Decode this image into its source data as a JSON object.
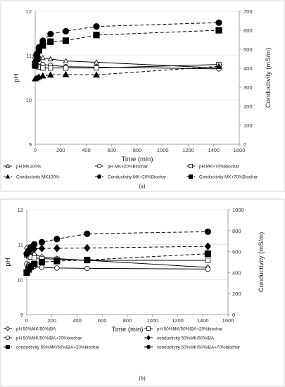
{
  "chart_data": [
    {
      "type": "line",
      "caption": "(a)",
      "xlabel": "Time (min)",
      "ylabel": "pH",
      "y2label": "Conductivity (mS/m)",
      "xlim": [
        0,
        1600
      ],
      "ylim": [
        9,
        12
      ],
      "y2lim": [
        0,
        700
      ],
      "xticks": [
        "0",
        "200",
        "400",
        "600",
        "800",
        "1000",
        "1200",
        "1400",
        "1600"
      ],
      "yticks": [
        "9",
        "10",
        "11",
        "12"
      ],
      "y2ticks": [
        "0",
        "100",
        "200",
        "300",
        "400",
        "500",
        "600",
        "700"
      ],
      "grid": true,
      "legend_position": "bottom",
      "series": [
        {
          "name": "pH MK100%",
          "axis": "left",
          "marker": "triangle-open",
          "line": "solid",
          "x": [
            0,
            15,
            30,
            60,
            120,
            240,
            480,
            1440
          ],
          "y": [
            11.05,
            11.0,
            10.98,
            10.95,
            10.92,
            10.88,
            10.85,
            10.72
          ]
        },
        {
          "name": "pH MK+20%Biochar",
          "axis": "left",
          "marker": "circle-open",
          "line": "solid",
          "x": [
            0,
            15,
            30,
            60,
            120,
            240,
            480,
            1440
          ],
          "y": [
            10.95,
            10.9,
            10.85,
            10.8,
            10.78,
            10.75,
            10.74,
            10.7
          ]
        },
        {
          "name": "pH MK+70%Biochar",
          "axis": "left",
          "marker": "square-open",
          "line": "solid",
          "x": [
            0,
            15,
            30,
            60,
            120,
            240,
            480,
            1440
          ],
          "y": [
            10.8,
            10.76,
            10.74,
            10.72,
            10.72,
            10.72,
            10.72,
            10.8
          ]
        },
        {
          "name": "Conductivity MK100%",
          "axis": "right",
          "marker": "triangle-filled",
          "line": "dashed",
          "x": [
            0,
            15,
            30,
            60,
            120,
            240,
            480,
            1440
          ],
          "y": [
            345,
            350,
            355,
            360,
            365,
            367,
            365,
            410
          ]
        },
        {
          "name": "Conductivity MK+20%Biochar",
          "axis": "right",
          "marker": "circle-filled",
          "line": "dashed",
          "x": [
            0,
            15,
            30,
            60,
            120,
            240,
            480,
            1440
          ],
          "y": [
            430,
            475,
            510,
            545,
            580,
            595,
            620,
            640
          ]
        },
        {
          "name": "Conductivity MK+70%Biochar",
          "axis": "right",
          "marker": "square-filled",
          "line": "dashed",
          "x": [
            0,
            15,
            30,
            60,
            120,
            240,
            480,
            1440
          ],
          "y": [
            415,
            450,
            495,
            520,
            540,
            545,
            575,
            600
          ]
        }
      ]
    },
    {
      "type": "line",
      "caption": "(b)",
      "xlabel": "Time (min)",
      "ylabel": "pH",
      "y2label": "Conductivity (mS/m)",
      "xlim": [
        0,
        1600
      ],
      "ylim": [
        9,
        12
      ],
      "y2lim": [
        0,
        1000
      ],
      "xticks": [
        "0",
        "200",
        "400",
        "600",
        "800",
        "1000",
        "1200",
        "1400",
        "1600"
      ],
      "yticks": [
        "9",
        "10",
        "11",
        "12"
      ],
      "y2ticks": [
        "0",
        "200",
        "400",
        "600",
        "800",
        "1000"
      ],
      "grid": true,
      "legend_position": "bottom",
      "series": [
        {
          "name": "pH 50%MK/50%IBA",
          "axis": "left",
          "marker": "diamond-open",
          "line": "solid",
          "x": [
            0,
            15,
            30,
            60,
            120,
            240,
            480,
            1440
          ],
          "y": [
            10.9,
            10.85,
            10.78,
            10.72,
            10.65,
            10.6,
            10.55,
            10.35
          ]
        },
        {
          "name": "pH 50%MK/50%IBA+20%biochar",
          "axis": "left",
          "marker": "square-open",
          "line": "solid",
          "x": [
            0,
            15,
            30,
            60,
            120,
            240,
            480,
            1440
          ],
          "y": [
            10.7,
            10.68,
            10.65,
            10.62,
            10.6,
            10.58,
            10.55,
            10.55
          ]
        },
        {
          "name": "pH 50%MK/50%IBA+70%biochar",
          "axis": "left",
          "marker": "circle-open",
          "line": "solid",
          "x": [
            0,
            15,
            30,
            60,
            120,
            240,
            480,
            1440
          ],
          "y": [
            10.45,
            10.42,
            10.4,
            10.38,
            10.35,
            10.33,
            10.32,
            10.3
          ]
        },
        {
          "name": "conductivity 50%MK/50%IBA",
          "axis": "right",
          "marker": "diamond-filled",
          "line": "dashed",
          "x": [
            0,
            15,
            30,
            60,
            120,
            240,
            480,
            1440
          ],
          "y": [
            580,
            600,
            615,
            625,
            630,
            632,
            635,
            650
          ]
        },
        {
          "name": "conductivity 50%MK/50%IBA+20%biochar",
          "axis": "right",
          "marker": "square-filled",
          "line": "dashed",
          "x": [
            0,
            15,
            30,
            60,
            120,
            240,
            480,
            1440
          ],
          "y": [
            400,
            430,
            455,
            480,
            500,
            510,
            520,
            580
          ]
        },
        {
          "name": "conductivity 50%MK/50%IBA+70%biochar",
          "axis": "right",
          "marker": "circle-filled",
          "line": "dashed",
          "x": [
            0,
            15,
            30,
            60,
            120,
            240,
            480,
            1440
          ],
          "y": [
            580,
            610,
            640,
            670,
            690,
            720,
            770,
            790
          ]
        }
      ]
    }
  ]
}
